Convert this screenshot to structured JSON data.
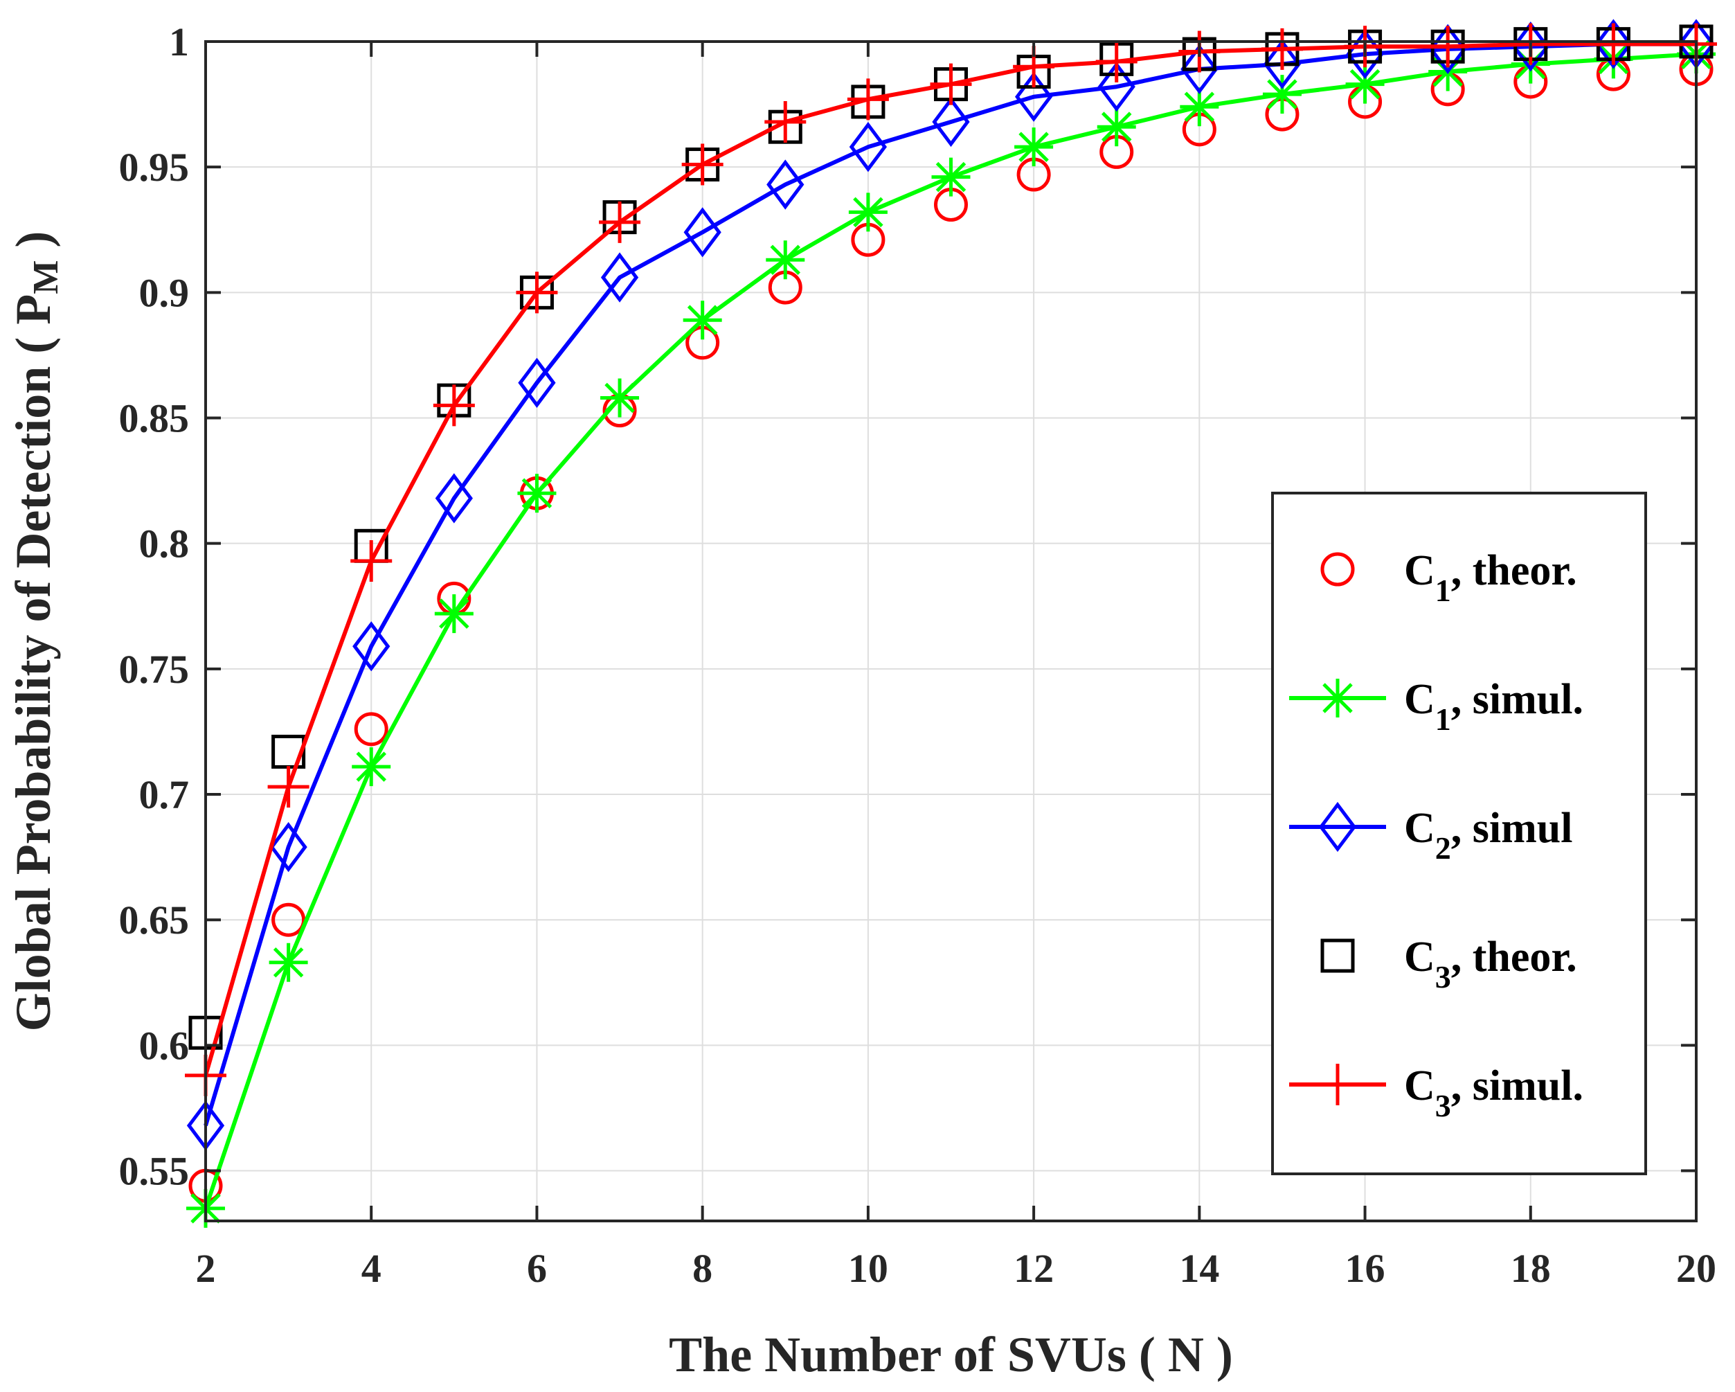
{
  "chart_data": {
    "type": "line",
    "title": "",
    "xlabel": "The Number of SVUs ( N )",
    "ylabel": "Global Probability of Detection ( P",
    "ylabel_sub": "M",
    "ylabel_end": " )",
    "xlim": [
      2,
      20
    ],
    "ylim": [
      0.53,
      1.0
    ],
    "xticks": [
      2,
      4,
      6,
      8,
      10,
      12,
      14,
      16,
      18,
      20
    ],
    "xtick_labels": [
      "2",
      "4",
      "6",
      "8",
      "10",
      "12",
      "14",
      "16",
      "18",
      "20"
    ],
    "yticks": [
      0.55,
      0.6,
      0.65,
      0.7,
      0.75,
      0.8,
      0.85,
      0.9,
      0.95,
      1.0
    ],
    "ytick_labels": [
      "0.55",
      "0.6",
      "0.65",
      "0.7",
      "0.75",
      "0.8",
      "0.85",
      "0.9",
      "0.95",
      "1"
    ],
    "grid": true,
    "legend_position": "center-right",
    "x": [
      2,
      3,
      4,
      5,
      6,
      7,
      8,
      9,
      10,
      11,
      12,
      13,
      14,
      15,
      16,
      17,
      18,
      19,
      20
    ],
    "series": [
      {
        "name": "C1, theor.",
        "legend_main": "C",
        "legend_sub": "1",
        "legend_rest": ", theor.",
        "color": "#ff0000",
        "marker": "circle",
        "line": false,
        "values": [
          0.544,
          0.65,
          0.726,
          0.778,
          0.82,
          0.853,
          0.88,
          0.902,
          0.921,
          0.935,
          0.947,
          0.956,
          0.965,
          0.971,
          0.976,
          0.981,
          0.984,
          0.987,
          0.989
        ]
      },
      {
        "name": "C1, simul.",
        "legend_main": "C",
        "legend_sub": "1",
        "legend_rest": ", simul.",
        "color": "#00ff00",
        "marker": "asterisk",
        "line": true,
        "values": [
          0.535,
          0.633,
          0.711,
          0.772,
          0.82,
          0.858,
          0.889,
          0.913,
          0.932,
          0.946,
          0.958,
          0.966,
          0.974,
          0.979,
          0.983,
          0.988,
          0.991,
          0.993,
          0.995
        ]
      },
      {
        "name": "C2, simul",
        "legend_main": "C",
        "legend_sub": "2",
        "legend_rest": ", simul",
        "color": "#0000ff",
        "marker": "diamond",
        "line": true,
        "values": [
          0.568,
          0.679,
          0.759,
          0.818,
          0.864,
          0.906,
          0.924,
          0.943,
          0.958,
          0.968,
          0.978,
          0.982,
          0.989,
          0.991,
          0.995,
          0.997,
          0.998,
          0.999,
          0.999
        ]
      },
      {
        "name": "C3, theor.",
        "legend_main": "C",
        "legend_sub": "3",
        "legend_rest": ", theor.",
        "color": "#000000",
        "marker": "square",
        "line": false,
        "values": [
          0.605,
          0.717,
          0.799,
          0.857,
          0.9,
          0.93,
          0.951,
          0.966,
          0.976,
          0.983,
          0.988,
          0.993,
          0.995,
          0.997,
          0.998,
          0.998,
          0.999,
          0.999,
          1.0
        ]
      },
      {
        "name": "C3, simul.",
        "legend_main": "C",
        "legend_sub": "3",
        "legend_rest": ", simul.",
        "color": "#ff0000",
        "marker": "plus",
        "line": true,
        "values": [
          0.588,
          0.703,
          0.793,
          0.855,
          0.9,
          0.928,
          0.951,
          0.968,
          0.977,
          0.983,
          0.99,
          0.992,
          0.996,
          0.997,
          0.998,
          0.998,
          0.999,
          0.999,
          0.999
        ]
      }
    ]
  }
}
